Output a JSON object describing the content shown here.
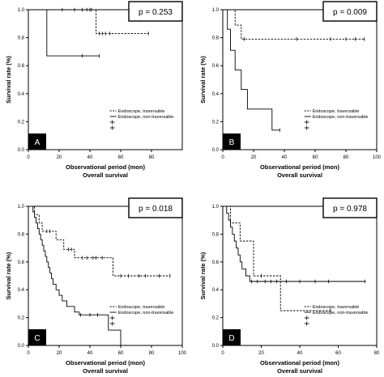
{
  "chart_data": [
    {
      "type": "line",
      "panel_letter": "A",
      "p_label": "p = 0.253",
      "xlabel": "Observational period (mon)",
      "subtitle": "Overall survival",
      "ylabel": "Survival rate (%)",
      "xlim": [
        0,
        100
      ],
      "ylim": [
        0,
        1
      ],
      "x_ticks": [
        "0",
        "20",
        "40",
        "60",
        "80"
      ],
      "y_ticks": [
        "0.0",
        "0.2",
        "0.4",
        "0.6",
        "0.8",
        "1.0"
      ],
      "x_tick_values": [
        0,
        20,
        40,
        60,
        80
      ],
      "y_tick_values": [
        0,
        0.2,
        0.4,
        0.6,
        0.8,
        1.0
      ],
      "legend": [
        "Endoscope, traversable",
        "Endoscope, non-traversable"
      ],
      "series": [
        {
          "name": "Endoscope, traversable",
          "dashed": true,
          "steps": [
            [
              0,
              1.0
            ],
            [
              44,
              0.83
            ],
            [
              78,
              0.83
            ]
          ],
          "censored": [
            22,
            30,
            35,
            38,
            40,
            41,
            46,
            48,
            50,
            53,
            78
          ]
        },
        {
          "name": "Endoscope, non-traversable",
          "dashed": false,
          "steps": [
            [
              0,
              1.0
            ],
            [
              12,
              0.67
            ],
            [
              46,
              0.67
            ]
          ],
          "censored": [
            35,
            46
          ]
        }
      ]
    },
    {
      "type": "line",
      "panel_letter": "B",
      "p_label": "p = 0.009",
      "xlabel": "Observational period (mon)",
      "subtitle": "Overall survival",
      "ylabel": "Survival rate (%)",
      "xlim": [
        0,
        100
      ],
      "ylim": [
        0,
        1
      ],
      "x_ticks": [
        "0",
        "20",
        "40",
        "60",
        "80",
        "100"
      ],
      "y_ticks": [
        "0.0",
        "0.2",
        "0.4",
        "0.6",
        "0.8",
        "1.0"
      ],
      "x_tick_values": [
        0,
        20,
        40,
        60,
        80,
        100
      ],
      "y_tick_values": [
        0,
        0.2,
        0.4,
        0.6,
        0.8,
        1.0
      ],
      "legend": [
        "Endoscope, traversable",
        "Endoscope, non-traversable"
      ],
      "series": [
        {
          "name": "Endoscope, traversable",
          "dashed": true,
          "steps": [
            [
              0,
              1.0
            ],
            [
              8,
              0.89
            ],
            [
              12,
              0.79
            ],
            [
              92,
              0.79
            ]
          ],
          "censored": [
            14,
            48,
            70,
            80,
            86,
            92
          ]
        },
        {
          "name": "Endoscope, non-traversable",
          "dashed": false,
          "steps": [
            [
              0,
              1.0
            ],
            [
              3,
              0.86
            ],
            [
              5,
              0.71
            ],
            [
              8,
              0.57
            ],
            [
              12,
              0.43
            ],
            [
              16,
              0.29
            ],
            [
              32,
              0.14
            ],
            [
              37,
              0.14
            ]
          ],
          "censored": [
            37
          ]
        }
      ]
    },
    {
      "type": "line",
      "panel_letter": "C",
      "p_label": "p = 0.018",
      "xlabel": "Observational period (mon)",
      "subtitle": "Overall survival",
      "ylabel": "Survival rate (%)",
      "xlim": [
        0,
        100
      ],
      "ylim": [
        0,
        1
      ],
      "x_ticks": [
        "0",
        "20",
        "40",
        "60",
        "80",
        "100"
      ],
      "y_ticks": [
        "0.0",
        "0.2",
        "0.4",
        "0.6",
        "0.8",
        "1.0"
      ],
      "x_tick_values": [
        0,
        20,
        40,
        60,
        80,
        100
      ],
      "y_tick_values": [
        0,
        0.2,
        0.4,
        0.6,
        0.8,
        1.0
      ],
      "legend": [
        "Endoscope, traversable",
        "Endoscope, non-traversable"
      ],
      "series": [
        {
          "name": "Endoscope, traversable",
          "dashed": true,
          "steps": [
            [
              0,
              1.0
            ],
            [
              4,
              0.94
            ],
            [
              7,
              0.88
            ],
            [
              9,
              0.82
            ],
            [
              18,
              0.76
            ],
            [
              23,
              0.69
            ],
            [
              30,
              0.63
            ],
            [
              55,
              0.5
            ],
            [
              92,
              0.5
            ]
          ],
          "censored": [
            12,
            14,
            26,
            28,
            35,
            38,
            42,
            44,
            48,
            60,
            65,
            72,
            76,
            85,
            92
          ]
        },
        {
          "name": "Endoscope, non-traversable",
          "dashed": false,
          "steps": [
            [
              0,
              1.0
            ],
            [
              3,
              0.96
            ],
            [
              4,
              0.92
            ],
            [
              5,
              0.88
            ],
            [
              6,
              0.84
            ],
            [
              7,
              0.8
            ],
            [
              8,
              0.76
            ],
            [
              9,
              0.72
            ],
            [
              10,
              0.68
            ],
            [
              11,
              0.64
            ],
            [
              12,
              0.6
            ],
            [
              13,
              0.56
            ],
            [
              14,
              0.52
            ],
            [
              15,
              0.48
            ],
            [
              16,
              0.44
            ],
            [
              18,
              0.4
            ],
            [
              20,
              0.36
            ],
            [
              22,
              0.32
            ],
            [
              25,
              0.28
            ],
            [
              30,
              0.24
            ],
            [
              33,
              0.22
            ],
            [
              52,
              0.11
            ],
            [
              60,
              0.0
            ]
          ],
          "censored": [
            34,
            40,
            45
          ]
        }
      ]
    },
    {
      "type": "line",
      "panel_letter": "D",
      "p_label": "p = 0.978",
      "xlabel": "Observational period (mon)",
      "subtitle": "Overall survival",
      "ylabel": "Survival rate (%)",
      "xlim": [
        0,
        80
      ],
      "ylim": [
        0,
        1
      ],
      "x_ticks": [
        "0",
        "20",
        "40",
        "60",
        "80"
      ],
      "y_ticks": [
        "0.0",
        "0.2",
        "0.4",
        "0.6",
        "0.8",
        "1.0"
      ],
      "x_tick_values": [
        0,
        20,
        40,
        60,
        80
      ],
      "y_tick_values": [
        0,
        0.2,
        0.4,
        0.6,
        0.8,
        1.0
      ],
      "legend": [
        "Endoscope, traversable",
        "Endoscope, non-traversable"
      ],
      "series": [
        {
          "name": "Endoscope, traversable",
          "dashed": true,
          "steps": [
            [
              0,
              1.0
            ],
            [
              4,
              0.88
            ],
            [
              9,
              0.75
            ],
            [
              16,
              0.5
            ],
            [
              30,
              0.25
            ],
            [
              56,
              0.25
            ]
          ],
          "censored": [
            20,
            56
          ]
        },
        {
          "name": "Endoscope, non-traversable",
          "dashed": false,
          "steps": [
            [
              0,
              1.0
            ],
            [
              2,
              0.95
            ],
            [
              3,
              0.9
            ],
            [
              4,
              0.85
            ],
            [
              5,
              0.8
            ],
            [
              6,
              0.75
            ],
            [
              7,
              0.7
            ],
            [
              8,
              0.65
            ],
            [
              9,
              0.6
            ],
            [
              10,
              0.55
            ],
            [
              12,
              0.5
            ],
            [
              14,
              0.46
            ],
            [
              74,
              0.46
            ]
          ],
          "censored": [
            15,
            18,
            22,
            25,
            28,
            33,
            40,
            48,
            55,
            74
          ]
        }
      ]
    }
  ]
}
